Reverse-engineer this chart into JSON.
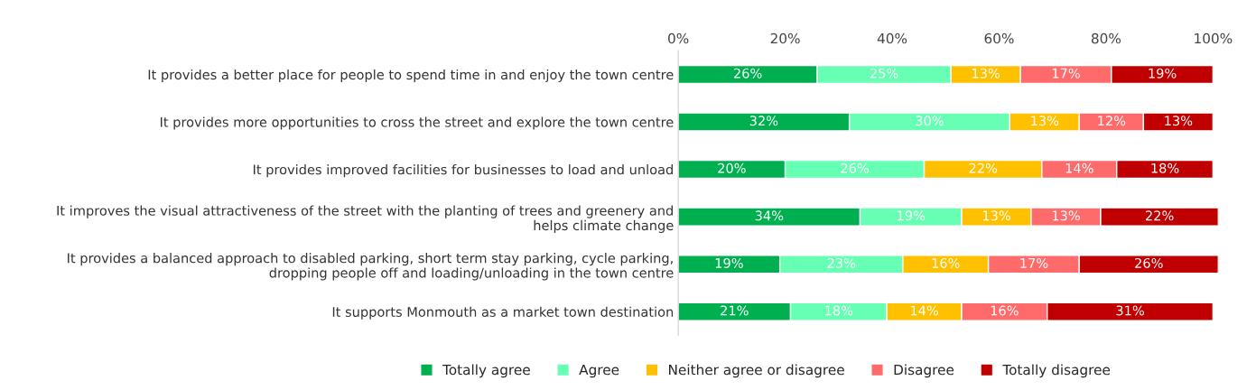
{
  "chart_data": {
    "type": "bar",
    "orientation": "horizontal",
    "stacked": true,
    "categories": [
      "It provides a better place for people to spend time in and enjoy the town centre",
      "It provides more opportunities to cross the street and explore the town centre",
      "It provides improved facilities for businesses to load and unload",
      "It improves the visual attractiveness of the street with the planting of trees and greenery and helps climate change",
      "It provides a balanced approach to disabled parking, short term stay parking, cycle parking, dropping people off and loading/unloading in the town centre",
      "It supports Monmouth as a market town destination"
    ],
    "series": [
      {
        "name": "Totally agree",
        "color": "#00b050",
        "values": [
          26,
          32,
          20,
          34,
          19,
          21
        ],
        "value_labels": [
          "26%",
          "32%",
          "20%",
          "34%",
          "19%",
          "21%"
        ]
      },
      {
        "name": "Agree",
        "color": "#66ffb3",
        "values": [
          25,
          30,
          26,
          19,
          23,
          18
        ],
        "value_labels": [
          "25%",
          "30%",
          "26%",
          "19%",
          "23%",
          "18%"
        ]
      },
      {
        "name": "Neither agree or disagree",
        "color": "#ffc000",
        "values": [
          13,
          13,
          22,
          13,
          16,
          14
        ],
        "value_labels": [
          "13%",
          "13%",
          "22%",
          "13%",
          "16%",
          "14%"
        ]
      },
      {
        "name": "Disagree",
        "color": "#ff6b6b",
        "values": [
          17,
          12,
          14,
          13,
          17,
          16
        ],
        "value_labels": [
          "17%",
          "12%",
          "14%",
          "13%",
          "17%",
          "16%"
        ]
      },
      {
        "name": "Totally disagree",
        "color": "#c00000",
        "values": [
          19,
          13,
          18,
          22,
          26,
          31
        ],
        "value_labels": [
          "19%",
          "13%",
          "18%",
          "22%",
          "26%",
          "31%"
        ]
      }
    ],
    "xlim": [
      0,
      101
    ],
    "xticks": [
      {
        "value": 0,
        "label": "0%"
      },
      {
        "value": 20,
        "label": "20%"
      },
      {
        "value": 40,
        "label": "40%"
      },
      {
        "value": 60,
        "label": "60%"
      },
      {
        "value": 80,
        "label": "80%"
      },
      {
        "value": 100,
        "label": "100%"
      }
    ],
    "grid": false,
    "legend": "bottom"
  }
}
